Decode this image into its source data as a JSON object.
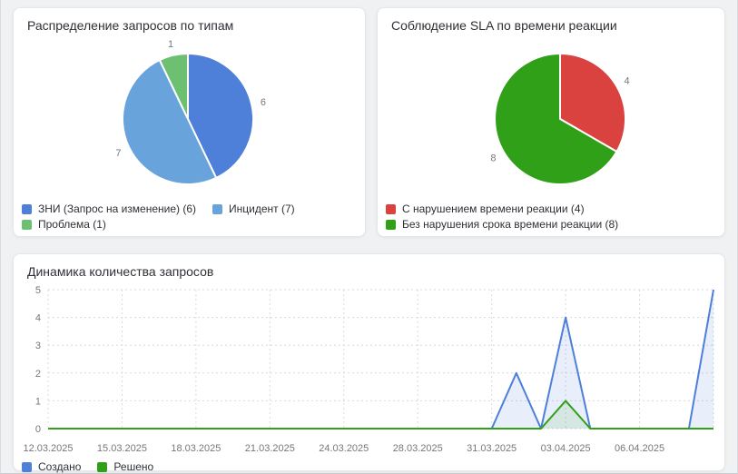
{
  "theme": {
    "page_bg": "#f0f1f2",
    "card_bg": "#ffffff",
    "card_border": "#e4e6ea",
    "title_text": "#2f3036",
    "muted_text": "#77777d",
    "grid": "#d9d9de"
  },
  "chart_data": [
    {
      "type": "pie",
      "title": "Распределение запросов по типам",
      "labels": [
        "ЗНИ (Запрос на изменение)",
        "Инцидент",
        "Проблема"
      ],
      "values": [
        6,
        7,
        1
      ],
      "colors": [
        "#4e7fd9",
        "#68a3dc",
        "#6dbf71"
      ],
      "value_labels": [
        "6",
        "7",
        "1"
      ],
      "legend": [
        "ЗНИ (Запрос на изменение) (6)",
        "Инцидент (7)",
        "Проблема (1)"
      ],
      "legend_position": "bottom-left",
      "start_angle_deg": 0,
      "direction": "clockwise"
    },
    {
      "type": "pie",
      "title": "Соблюдение SLA по времени реакции",
      "labels": [
        "С нарушением времени реакции",
        "Без нарушения срока времени реакции"
      ],
      "values": [
        4,
        8
      ],
      "colors": [
        "#d9423e",
        "#30a018"
      ],
      "value_labels": [
        "4",
        "8"
      ],
      "legend": [
        "С нарушением времени реакции (4)",
        "Без нарушения срока времени реакции (8)"
      ],
      "legend_position": "bottom-left",
      "start_angle_deg": 0,
      "direction": "clockwise"
    },
    {
      "type": "line",
      "title": "Динамика количества запросов",
      "x": [
        "12.03.2025",
        "13.03.2025",
        "14.03.2025",
        "15.03.2025",
        "16.03.2025",
        "17.03.2025",
        "18.03.2025",
        "19.03.2025",
        "20.03.2025",
        "21.03.2025",
        "22.03.2025",
        "23.03.2025",
        "24.03.2025",
        "25.03.2025",
        "26.03.2025",
        "28.03.2025",
        "29.03.2025",
        "30.03.2025",
        "31.03.2025",
        "01.04.2025",
        "02.04.2025",
        "03.04.2025",
        "04.04.2025",
        "05.04.2025",
        "06.04.2025",
        "07.04.2025",
        "08.04.2025",
        "09.04.2025"
      ],
      "x_tick_labels": [
        "12.03.2025",
        "15.03.2025",
        "18.03.2025",
        "21.03.2025",
        "24.03.2025",
        "28.03.2025",
        "31.03.2025",
        "03.04.2025",
        "06.04.2025"
      ],
      "x_tick_every": 3,
      "yticks": [
        0,
        1,
        2,
        3,
        4,
        5
      ],
      "ylim": [
        0,
        5
      ],
      "grid": "dotted",
      "area_fill": true,
      "legend_position": "bottom-left",
      "series": [
        {
          "name": "Создано",
          "color": "#4e7fd9",
          "fill": "rgba(78,127,217,0.12)",
          "values": [
            0,
            0,
            0,
            0,
            0,
            0,
            0,
            0,
            0,
            0,
            0,
            0,
            0,
            0,
            0,
            0,
            0,
            0,
            0,
            2,
            0,
            4,
            0,
            0,
            0,
            0,
            0,
            5
          ]
        },
        {
          "name": "Решено",
          "color": "#30a018",
          "fill": "rgba(48,160,24,0.10)",
          "values": [
            0,
            0,
            0,
            0,
            0,
            0,
            0,
            0,
            0,
            0,
            0,
            0,
            0,
            0,
            0,
            0,
            0,
            0,
            0,
            0,
            0,
            1,
            0,
            0,
            0,
            0,
            0,
            0
          ]
        }
      ]
    }
  ]
}
